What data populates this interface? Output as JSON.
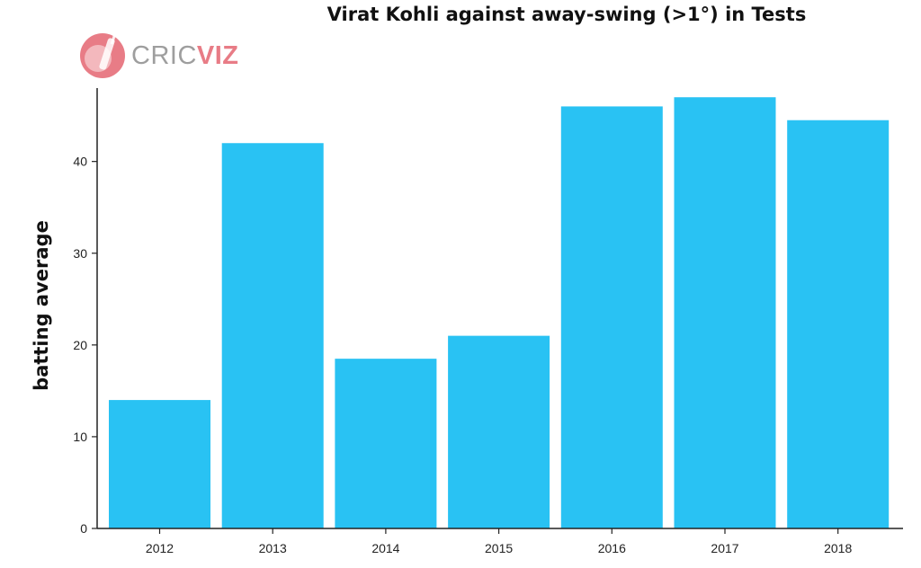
{
  "logo": {
    "text_grey": "CRIC",
    "text_accent": "VIZ",
    "icon": "cricket-bat-ball-icon",
    "accent_color": "#e87c86"
  },
  "chart_data": {
    "type": "bar",
    "title": "Virat Kohli against away-swing (>1°) in Tests",
    "xlabel": "",
    "ylabel": "batting average",
    "categories": [
      "2012",
      "2013",
      "2014",
      "2015",
      "2016",
      "2017",
      "2018"
    ],
    "values": [
      14.0,
      42.0,
      18.5,
      21.0,
      46.0,
      47.0,
      44.5
    ],
    "ylim": [
      0,
      48
    ],
    "yticks": [
      0,
      10,
      20,
      30,
      40
    ],
    "bar_color": "#29c2f3",
    "grid": false,
    "legend": "none"
  }
}
